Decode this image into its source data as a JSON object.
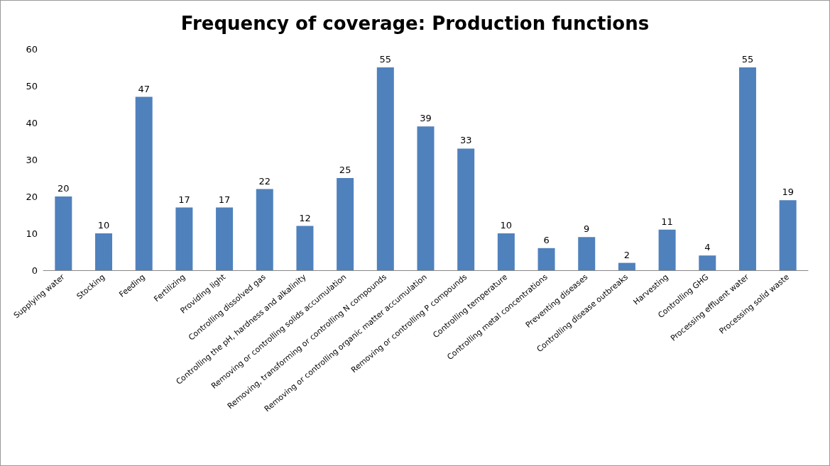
{
  "chart_data": {
    "type": "bar",
    "title": "Frequency of coverage: Production functions",
    "categories": [
      "Supplying water",
      "Stocking",
      "Feeding",
      "Fertilizing",
      "Providing light",
      "Controlling dissolved gas",
      "Controlling the pH, hardness and alkalinity",
      "Removing or controlling solids accumulation",
      "Removing, transforming or controlling N compounds",
      "Removing or controlling organic matter accumulation",
      "Removing or controlling P compounds",
      "Controlling temperature",
      "Controlling metal concentrations",
      "Preventing diseases",
      "Controlling disease outbreaks",
      "Harvesting",
      "Controlling GHG",
      "Processing effluent water",
      "Processing solid waste"
    ],
    "values": [
      20,
      10,
      47,
      17,
      17,
      22,
      12,
      25,
      55,
      39,
      33,
      10,
      6,
      9,
      2,
      11,
      4,
      55,
      19
    ],
    "color": "#4f81bd",
    "ylim": [
      0,
      60
    ],
    "yticks": [
      0,
      10,
      20,
      30,
      40,
      50,
      60
    ],
    "grid": false,
    "data_labels": true
  }
}
